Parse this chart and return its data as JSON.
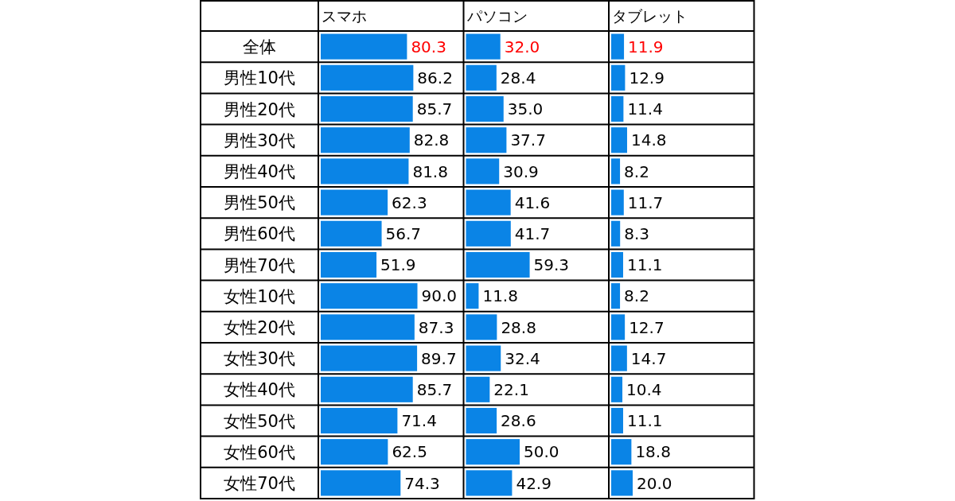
{
  "chart_data": [
    {
      "type": "bar",
      "orientation": "horizontal",
      "title": "スマホ",
      "categories": [
        "全体",
        "男性10代",
        "男性20代",
        "男性30代",
        "男性40代",
        "男性50代",
        "男性60代",
        "男性70代",
        "女性10代",
        "女性20代",
        "女性30代",
        "女性40代",
        "女性50代",
        "女性60代",
        "女性70代"
      ],
      "values": [
        80.3,
        86.2,
        85.7,
        82.8,
        81.8,
        62.3,
        56.7,
        51.9,
        90.0,
        87.3,
        89.7,
        85.7,
        71.4,
        62.5,
        74.3
      ],
      "value_labels": [
        "80.3",
        "86.2",
        "85.7",
        "82.8",
        "81.8",
        "62.3",
        "56.7",
        "51.9",
        "90.0",
        "87.3",
        "89.7",
        "85.7",
        "71.4",
        "62.5",
        "74.3"
      ],
      "color": "#0a84e6",
      "tick_labels": "y"
    },
    {
      "type": "bar",
      "orientation": "horizontal",
      "title": "パソコン",
      "categories": [
        null,
        null,
        null,
        null,
        null,
        null,
        null,
        null,
        null,
        null,
        null,
        null,
        null,
        null,
        null
      ],
      "values": [
        32.0,
        28.4,
        35.0,
        37.7,
        30.9,
        41.6,
        41.7,
        59.3,
        11.8,
        28.8,
        32.4,
        22.1,
        28.6,
        50.0,
        42.9
      ],
      "value_labels": [
        "32.0",
        "28.4",
        "35.0",
        "37.7",
        "30.9",
        "41.6",
        "41.7",
        "59.3",
        "11.8",
        "28.8",
        "32.4",
        "22.1",
        "28.6",
        "50.0",
        "42.9"
      ],
      "color": "#0a84e6",
      "tick_labels": false
    },
    {
      "type": "bar",
      "orientation": "horizontal",
      "title": "タブレット",
      "categories": [
        null,
        null,
        null,
        null,
        null,
        null,
        null,
        null,
        null,
        null,
        null,
        null,
        null,
        null,
        null
      ],
      "values": [
        11.9,
        12.9,
        11.4,
        14.8,
        8.2,
        11.7,
        8.3,
        11.1,
        8.2,
        12.7,
        14.7,
        10.4,
        11.1,
        18.8,
        20.0
      ],
      "value_labels": [
        "11.9",
        "12.9",
        "11.4",
        "14.8",
        "8.2",
        "11.7",
        "8.3",
        "11.1",
        "8.2",
        "12.7",
        "14.7",
        "10.4",
        "11.1",
        "18.8",
        "20.0"
      ],
      "color": "#0a84e6",
      "tick_labels": false
    }
  ]
}
